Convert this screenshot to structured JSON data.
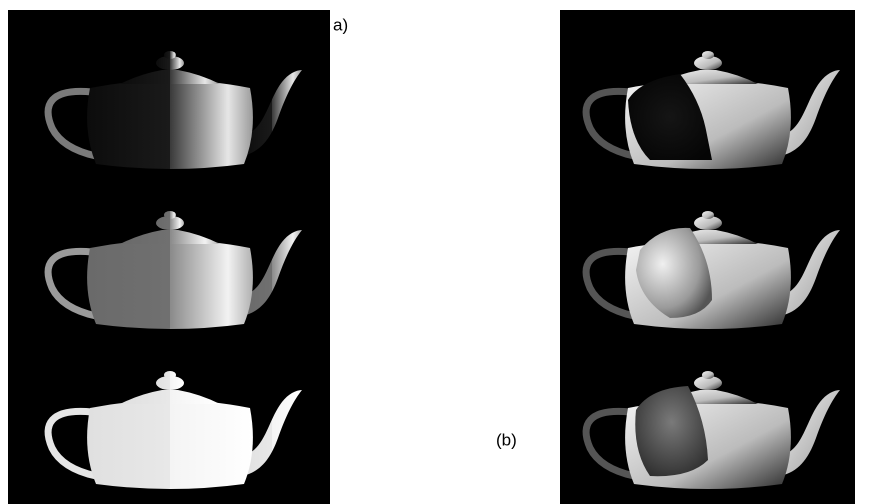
{
  "labels": {
    "a": "a)",
    "b": "(b)"
  }
}
